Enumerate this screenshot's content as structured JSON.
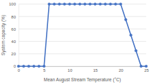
{
  "chart_data": {
    "type": "line",
    "x_label": "Mean August Stream Temperature (°C)",
    "y_label": "System capacity (%)",
    "x": [
      0,
      1,
      2,
      3,
      4,
      5,
      6,
      7,
      8,
      9,
      10,
      11,
      12,
      13,
      14,
      15,
      16,
      17,
      18,
      19,
      20,
      21,
      22,
      23,
      24,
      25
    ],
    "values": [
      0,
      0,
      0,
      0,
      0,
      0,
      100,
      100,
      100,
      100,
      100,
      100,
      100,
      100,
      100,
      100,
      100,
      100,
      100,
      100,
      100,
      75,
      50,
      25,
      0,
      0
    ],
    "color": "#4472c4",
    "marker": "circle",
    "line_style": "solid",
    "xlim": [
      0,
      25
    ],
    "xticks": [
      0,
      5,
      10,
      15,
      20,
      25
    ],
    "ylim": [
      0,
      100
    ],
    "yticks": [
      0,
      20,
      40,
      60,
      80,
      100
    ],
    "grid": true
  }
}
